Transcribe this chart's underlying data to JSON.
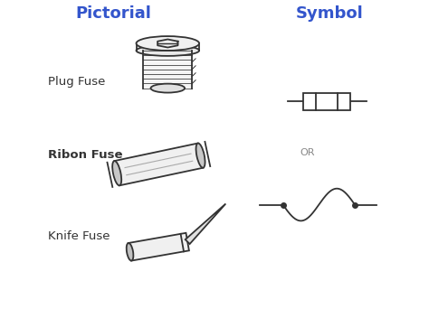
{
  "title_left": "Pictorial",
  "title_right": "Symbol",
  "title_color": "#3355cc",
  "title_fontsize": 13,
  "label_plug": "Plug Fuse",
  "label_ribon": "Ribon Fuse",
  "label_knife": "Knife Fuse",
  "label_or": "OR",
  "bg_color": "#ffffff",
  "line_color": "#333333",
  "label_color": "#333333",
  "label_fontsize": 9.5
}
